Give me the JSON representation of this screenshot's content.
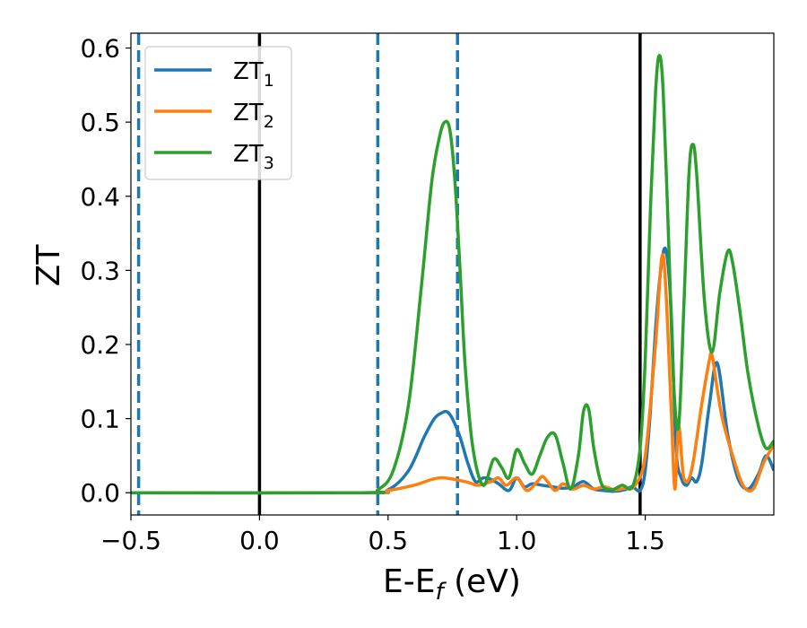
{
  "chart_data": {
    "type": "line",
    "xlabel": "E-E",
    "xlabel_sub": "f",
    "xlabel_unit": " (eV)",
    "ylabel": "ZT",
    "xlim": [
      -0.5,
      2.0
    ],
    "ylim": [
      -0.03,
      0.62
    ],
    "xticks": [
      -0.5,
      0.0,
      0.5,
      1.0,
      1.5
    ],
    "xtick_labels": [
      "−0.5",
      "0.0",
      "0.5",
      "1.0",
      "1.5"
    ],
    "yticks": [
      0.0,
      0.1,
      0.2,
      0.3,
      0.4,
      0.5,
      0.6
    ],
    "ytick_labels": [
      "0.0",
      "0.1",
      "0.2",
      "0.3",
      "0.4",
      "0.5",
      "0.6"
    ],
    "grid": false,
    "legend_position": "top-left",
    "vertical_lines": [
      {
        "x": -0.47,
        "style": "dashed",
        "color": "#1f77b4"
      },
      {
        "x": 0.0,
        "style": "solid",
        "color": "#000000"
      },
      {
        "x": 0.46,
        "style": "dashed",
        "color": "#1f77b4"
      },
      {
        "x": 0.77,
        "style": "dashed",
        "color": "#1f77b4"
      },
      {
        "x": 1.48,
        "style": "solid",
        "color": "#000000"
      }
    ],
    "series": [
      {
        "name": "ZT",
        "sub": "1",
        "color": "#1f77b4",
        "x": [
          -0.5,
          0.4,
          0.5,
          0.58,
          0.64,
          0.68,
          0.71,
          0.73,
          0.75,
          0.78,
          0.81,
          0.84,
          0.87,
          0.9,
          0.93,
          0.97,
          1.0,
          1.03,
          1.06,
          1.1,
          1.14,
          1.18,
          1.22,
          1.26,
          1.3,
          1.34,
          1.38,
          1.42,
          1.45,
          1.48,
          1.5,
          1.52,
          1.54,
          1.56,
          1.58,
          1.6,
          1.62,
          1.64,
          1.66,
          1.68,
          1.7,
          1.72,
          1.75,
          1.78,
          1.82,
          1.86,
          1.9,
          1.94,
          1.97,
          2.0
        ],
        "y": [
          0.0,
          0.0,
          0.004,
          0.03,
          0.075,
          0.1,
          0.108,
          0.109,
          0.1,
          0.075,
          0.04,
          0.015,
          0.02,
          0.018,
          0.012,
          0.003,
          0.02,
          0.008,
          0.012,
          0.01,
          0.008,
          0.006,
          0.008,
          0.015,
          0.005,
          0.003,
          0.002,
          0.004,
          0.008,
          0.003,
          0.03,
          0.11,
          0.22,
          0.3,
          0.328,
          0.25,
          0.06,
          0.02,
          0.01,
          0.02,
          0.015,
          0.04,
          0.12,
          0.175,
          0.08,
          0.02,
          0.005,
          0.025,
          0.05,
          0.03
        ]
      },
      {
        "name": "ZT",
        "sub": "2",
        "color": "#ff7f0e",
        "x": [
          -0.5,
          0.4,
          0.5,
          0.6,
          0.7,
          0.8,
          0.85,
          0.9,
          0.93,
          0.96,
          1.0,
          1.04,
          1.08,
          1.1,
          1.12,
          1.15,
          1.18,
          1.22,
          1.26,
          1.3,
          1.34,
          1.38,
          1.42,
          1.46,
          1.5,
          1.54,
          1.57,
          1.6,
          1.615,
          1.63,
          1.65,
          1.68,
          1.72,
          1.75,
          1.76,
          1.78,
          1.8,
          1.84,
          1.88,
          1.92,
          1.96,
          2.0
        ],
        "y": [
          0.0,
          0.0,
          0.003,
          0.01,
          0.02,
          0.015,
          0.01,
          0.015,
          0.02,
          0.01,
          0.02,
          0.003,
          0.015,
          0.022,
          0.015,
          0.003,
          0.012,
          0.005,
          0.01,
          0.005,
          0.008,
          0.004,
          0.006,
          0.01,
          0.05,
          0.2,
          0.32,
          0.12,
          0.005,
          0.09,
          0.02,
          0.03,
          0.12,
          0.18,
          0.185,
          0.14,
          0.1,
          0.05,
          0.01,
          0.005,
          0.04,
          0.065
        ]
      },
      {
        "name": "ZT",
        "sub": "3",
        "color": "#2ca02c",
        "x": [
          -0.5,
          0.4,
          0.46,
          0.52,
          0.58,
          0.63,
          0.67,
          0.7,
          0.72,
          0.74,
          0.76,
          0.78,
          0.8,
          0.83,
          0.87,
          0.91,
          0.94,
          0.97,
          1.0,
          1.03,
          1.06,
          1.09,
          1.12,
          1.15,
          1.18,
          1.21,
          1.24,
          1.26,
          1.28,
          1.3,
          1.33,
          1.37,
          1.41,
          1.45,
          1.48,
          1.5,
          1.52,
          1.54,
          1.555,
          1.57,
          1.59,
          1.61,
          1.63,
          1.65,
          1.67,
          1.685,
          1.7,
          1.73,
          1.76,
          1.79,
          1.82,
          1.84,
          1.87,
          1.9,
          1.94,
          1.97,
          2.0
        ],
        "y": [
          0.0,
          0.0,
          0.004,
          0.03,
          0.12,
          0.28,
          0.42,
          0.48,
          0.5,
          0.49,
          0.42,
          0.3,
          0.17,
          0.06,
          0.01,
          0.045,
          0.035,
          0.02,
          0.058,
          0.04,
          0.025,
          0.05,
          0.075,
          0.078,
          0.04,
          0.005,
          0.05,
          0.11,
          0.113,
          0.06,
          0.012,
          0.004,
          0.01,
          0.008,
          0.06,
          0.18,
          0.38,
          0.54,
          0.59,
          0.54,
          0.35,
          0.15,
          0.09,
          0.25,
          0.43,
          0.47,
          0.43,
          0.26,
          0.19,
          0.27,
          0.325,
          0.31,
          0.24,
          0.16,
          0.09,
          0.06,
          0.07
        ]
      }
    ]
  }
}
